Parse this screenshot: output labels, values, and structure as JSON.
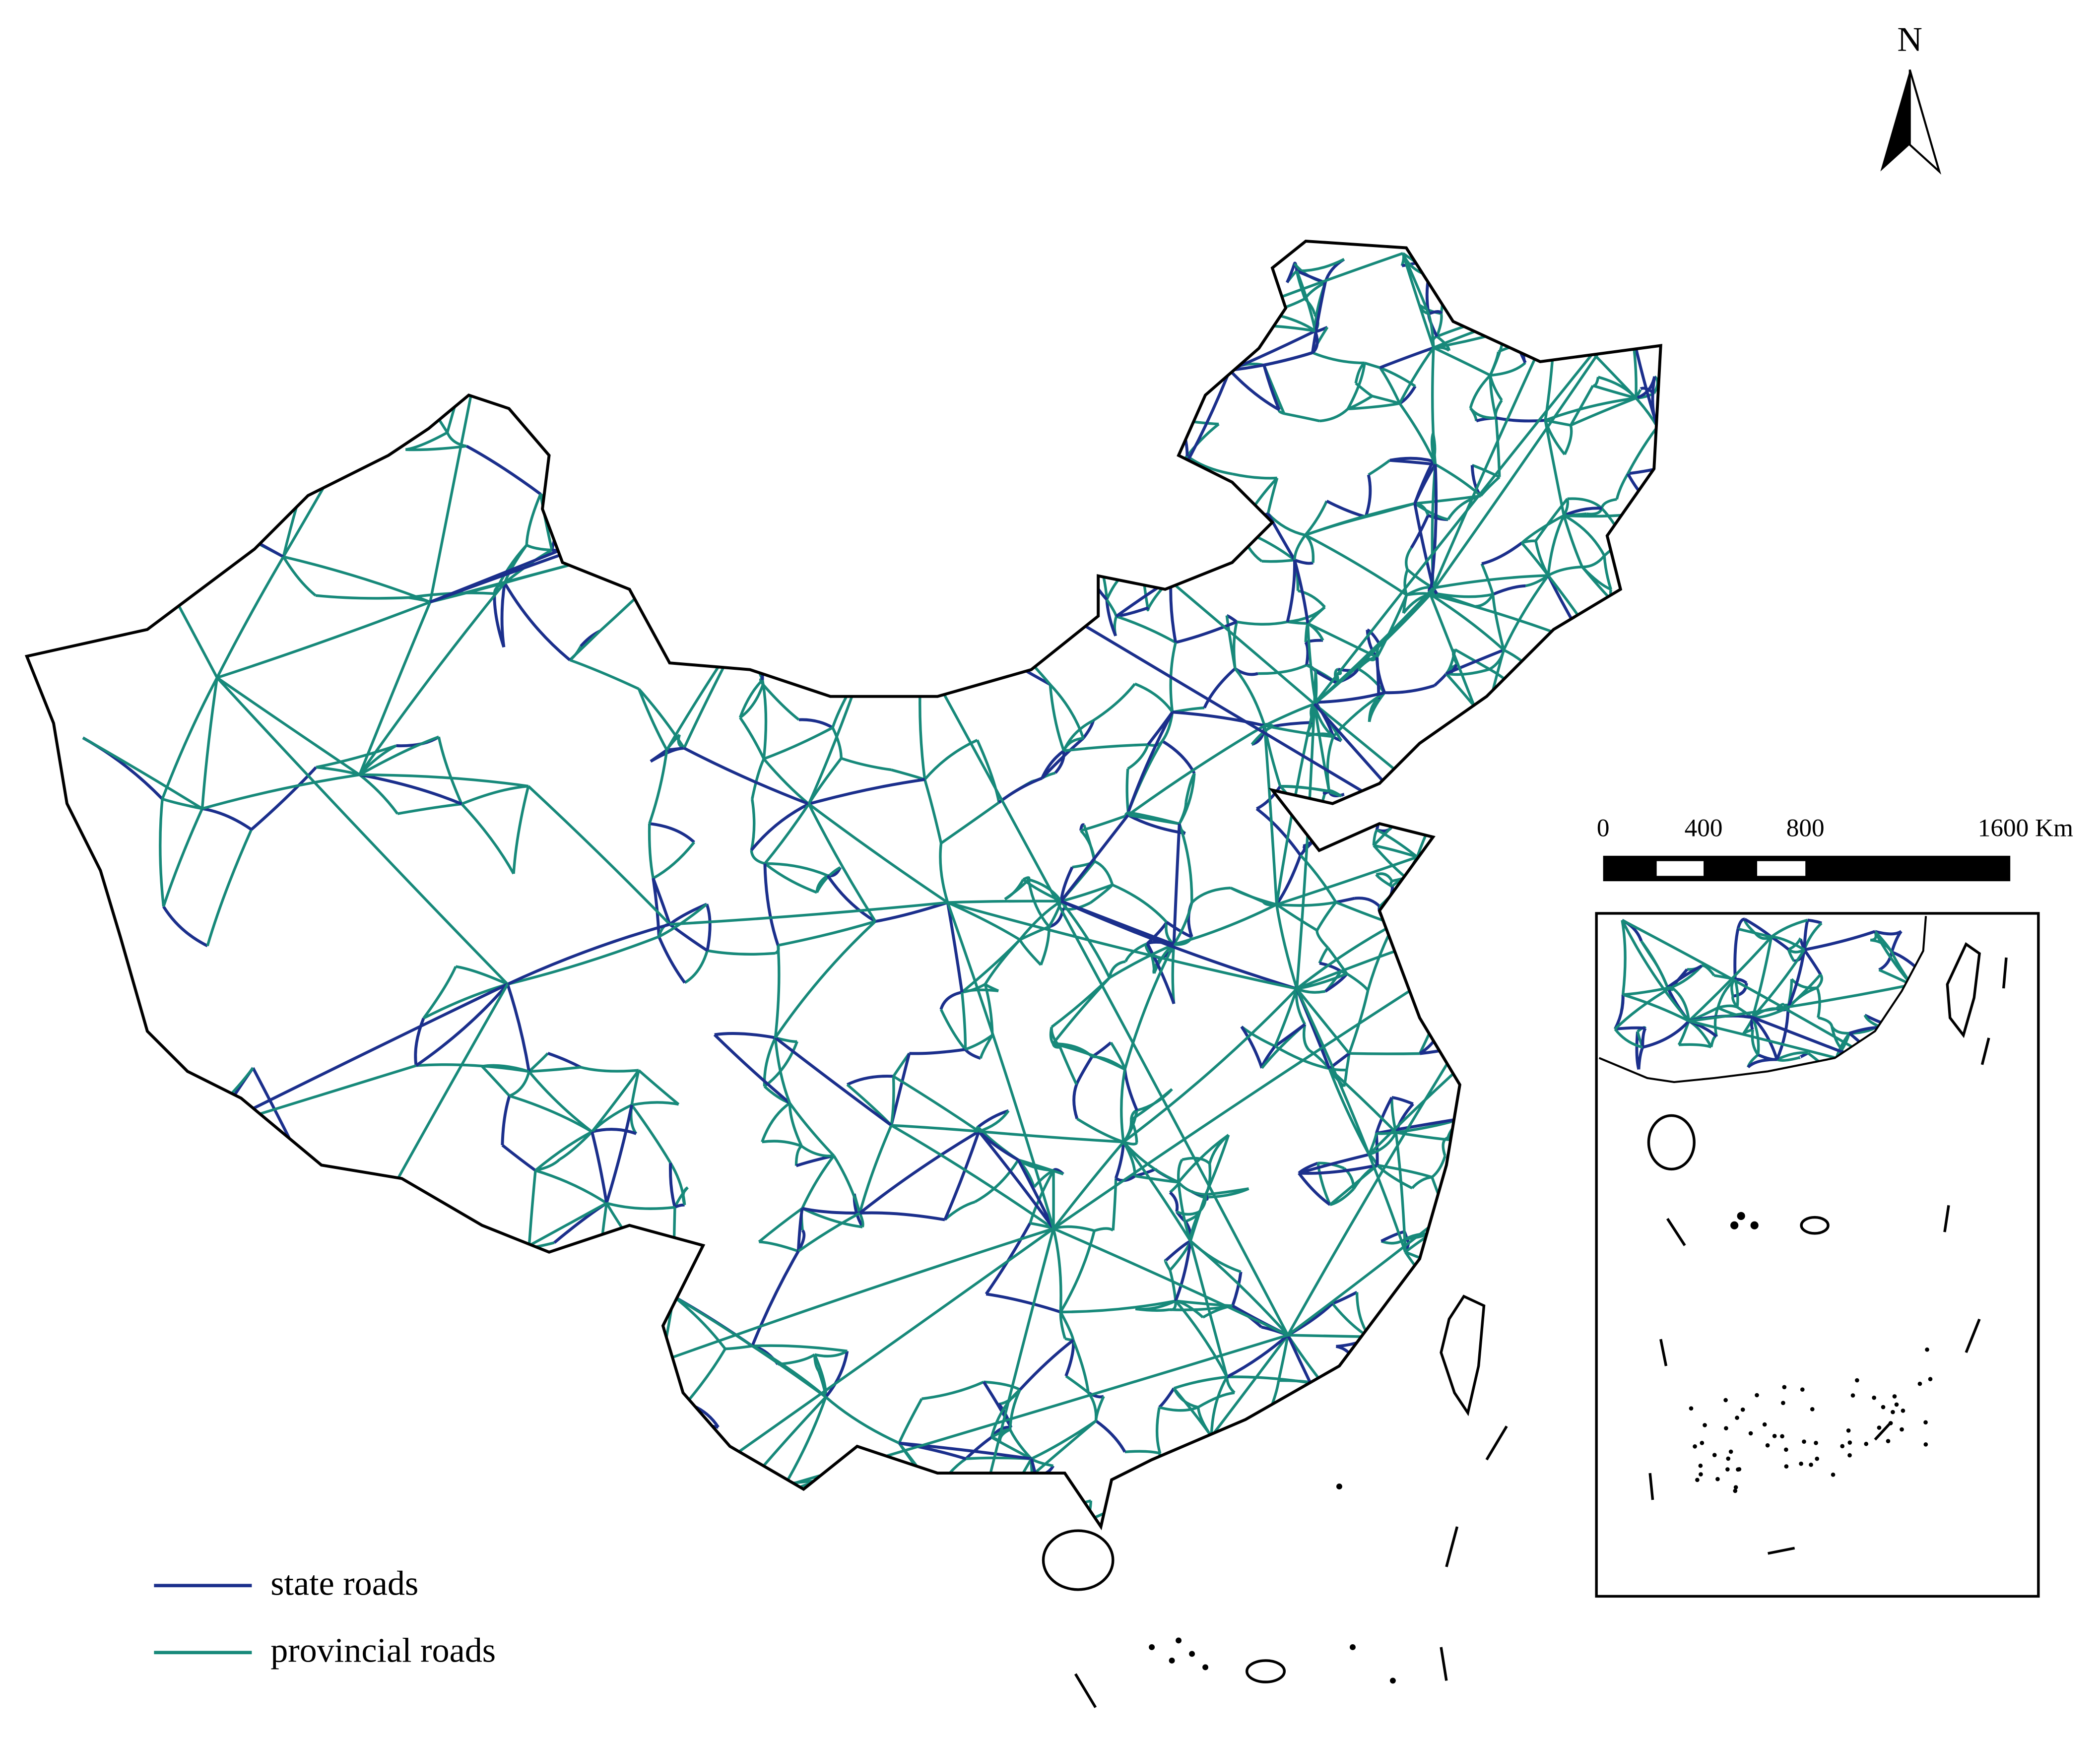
{
  "north_label": "N",
  "scale_bar": {
    "labels": [
      "0",
      "400",
      "800",
      "1600 Km"
    ]
  },
  "legend": [
    {
      "label": "state roads",
      "color": "#1b2f8c"
    },
    {
      "label": "provincial roads",
      "color": "#17897a"
    }
  ]
}
